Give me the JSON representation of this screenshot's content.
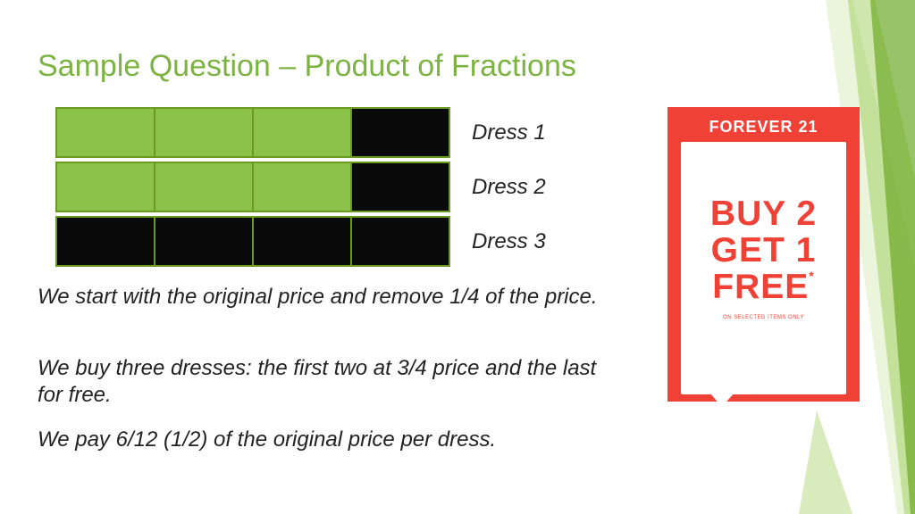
{
  "colors": {
    "accent_green": "#7cb342",
    "cell_green": "#8bc34a",
    "cell_black": "#0a0a0a",
    "cell_border": "#6a9a1f",
    "text_black": "#222222",
    "promo_red": "#ef4135",
    "white": "#ffffff",
    "stripe_light": "rgba(140,198,62,0.18)",
    "stripe_mid": "rgba(140,198,62,0.42)",
    "stripe_dark": "rgba(110,170,40,0.70)"
  },
  "title": "Sample Question – Product of Fractions",
  "rows": [
    {
      "label": "Dress 1",
      "cells": [
        "green",
        "green",
        "green",
        "black"
      ]
    },
    {
      "label": "Dress 2",
      "cells": [
        "green",
        "green",
        "green",
        "black"
      ]
    },
    {
      "label": "Dress 3",
      "cells": [
        "black",
        "black",
        "black",
        "black"
      ]
    }
  ],
  "paragraphs": [
    "We start with the original price and remove 1/4 of the price.",
    "We buy three dresses: the first two at 3/4 price and the last for free.",
    "We pay 6/12 (1/2) of the original price per dress."
  ],
  "paragraph_tops": [
    318,
    398,
    478
  ],
  "promo": {
    "brand": "FOREVER 21",
    "lines": [
      "BUY 2",
      "GET 1",
      "FREE"
    ],
    "asterisk": "*",
    "small": "ON SELECTED ITEMS ONLY"
  }
}
